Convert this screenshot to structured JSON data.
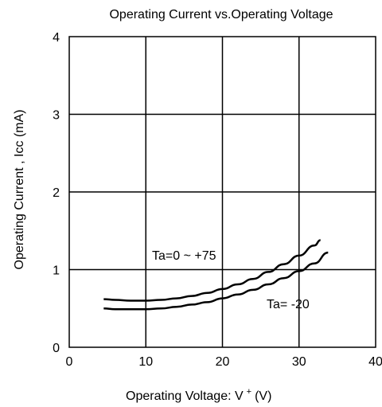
{
  "chart_data": {
    "type": "line",
    "title": "Operating Current vs.Operating Voltage",
    "xlabel": "Operating Voltage: V",
    "xlabel_sup": "+",
    "xlabel_unit": "(V)",
    "ylabel": "Operating Current , Icc (mA)",
    "xlim": [
      0,
      40
    ],
    "ylim": [
      0,
      4
    ],
    "xticks": [
      0,
      10,
      20,
      30,
      40
    ],
    "yticks": [
      0,
      1,
      2,
      3,
      4
    ],
    "grid": true,
    "series": [
      {
        "name": "Ta=0 ~ +75",
        "x": [
          4.5,
          6,
          8,
          10,
          12,
          14,
          16,
          18,
          20,
          22,
          24,
          26,
          28,
          30,
          32,
          32.8
        ],
        "y": [
          0.62,
          0.61,
          0.6,
          0.6,
          0.61,
          0.63,
          0.66,
          0.7,
          0.75,
          0.81,
          0.88,
          0.97,
          1.07,
          1.18,
          1.31,
          1.38
        ]
      },
      {
        "name": "Ta= -20",
        "x": [
          4.5,
          6,
          8,
          10,
          12,
          14,
          16,
          18,
          20,
          22,
          24,
          26,
          28,
          30,
          32,
          33.8
        ],
        "y": [
          0.5,
          0.49,
          0.49,
          0.49,
          0.5,
          0.52,
          0.55,
          0.58,
          0.63,
          0.68,
          0.74,
          0.81,
          0.89,
          0.98,
          1.08,
          1.22
        ]
      }
    ]
  }
}
